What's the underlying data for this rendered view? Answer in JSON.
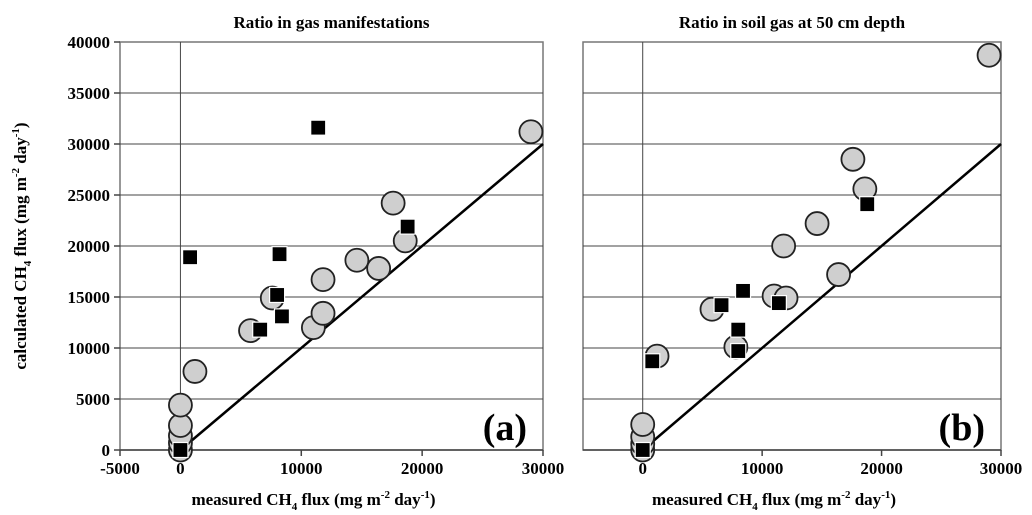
{
  "chart_data": [
    {
      "type": "scatter",
      "title": "Ratio in gas manifestations",
      "panel_label": "(a)",
      "xlabel": {
        "pre": "measured CH",
        "sub": "4",
        "mid": " flux (mg m",
        "sup": "-2",
        "post": " day",
        "sup2": "-1",
        "end": ")"
      },
      "ylabel": {
        "pre": "calculated CH",
        "sub": "4",
        "mid": " flux (mg m",
        "sup": "-2",
        "post": " day",
        "sup2": "-1",
        "end": ")"
      },
      "xlim": [
        -5000,
        30000
      ],
      "ylim": [
        0,
        40000
      ],
      "x_ticks": [
        "-5000",
        "0",
        "10000",
        "20000",
        "30000"
      ],
      "y_ticks": [
        "0",
        "5000",
        "10000",
        "15000",
        "20000",
        "25000",
        "30000",
        "35000",
        "40000"
      ],
      "reference_line": {
        "from": [
          0,
          0
        ],
        "to": [
          30000,
          30000
        ]
      },
      "grid": "horizontal",
      "series": [
        {
          "marker": "circle",
          "points": [
            [
              0,
              0
            ],
            [
              0,
              700
            ],
            [
              0,
              1400
            ],
            [
              0,
              2400
            ],
            [
              0,
              4400
            ],
            [
              1200,
              7700
            ],
            [
              5800,
              11700
            ],
            [
              7600,
              14900
            ],
            [
              11000,
              12000
            ],
            [
              11800,
              13400
            ],
            [
              11800,
              16700
            ],
            [
              14600,
              18600
            ],
            [
              16400,
              17800
            ],
            [
              17600,
              24200
            ],
            [
              18600,
              20500
            ],
            [
              29000,
              31200
            ]
          ]
        },
        {
          "marker": "square",
          "points": [
            [
              0,
              0
            ],
            [
              800,
              18900
            ],
            [
              6600,
              11800
            ],
            [
              8000,
              15200
            ],
            [
              8200,
              19200
            ],
            [
              8400,
              13100
            ],
            [
              11400,
              31600
            ],
            [
              18800,
              21900
            ]
          ]
        }
      ]
    },
    {
      "type": "scatter",
      "title": "Ratio in soil gas at 50 cm depth",
      "panel_label": "(b)",
      "xlabel": {
        "pre": "measured CH",
        "sub": "4",
        "mid": " flux (mg m",
        "sup": "-2",
        "post": " day",
        "sup2": "-1",
        "end": ")"
      },
      "xlim": [
        -5000,
        30000
      ],
      "ylim": [
        0,
        40000
      ],
      "x_ticks": [
        "0",
        "10000",
        "20000",
        "30000"
      ],
      "reference_line": {
        "from": [
          0,
          0
        ],
        "to": [
          30000,
          30000
        ]
      },
      "grid": "horizontal",
      "series": [
        {
          "marker": "circle",
          "points": [
            [
              0,
              0
            ],
            [
              0,
              600
            ],
            [
              0,
              1300
            ],
            [
              0,
              2500
            ],
            [
              1200,
              9200
            ],
            [
              5800,
              13800
            ],
            [
              7800,
              10100
            ],
            [
              11000,
              15100
            ],
            [
              12000,
              14900
            ],
            [
              11800,
              20000
            ],
            [
              14600,
              22200
            ],
            [
              16400,
              17200
            ],
            [
              17600,
              28500
            ],
            [
              18600,
              25600
            ],
            [
              29000,
              38700
            ]
          ]
        },
        {
          "marker": "square",
          "points": [
            [
              0,
              0
            ],
            [
              800,
              8700
            ],
            [
              6600,
              14200
            ],
            [
              8000,
              11800
            ],
            [
              8000,
              9700
            ],
            [
              8400,
              15600
            ],
            [
              11400,
              14400
            ],
            [
              18800,
              24100
            ]
          ]
        }
      ]
    }
  ]
}
